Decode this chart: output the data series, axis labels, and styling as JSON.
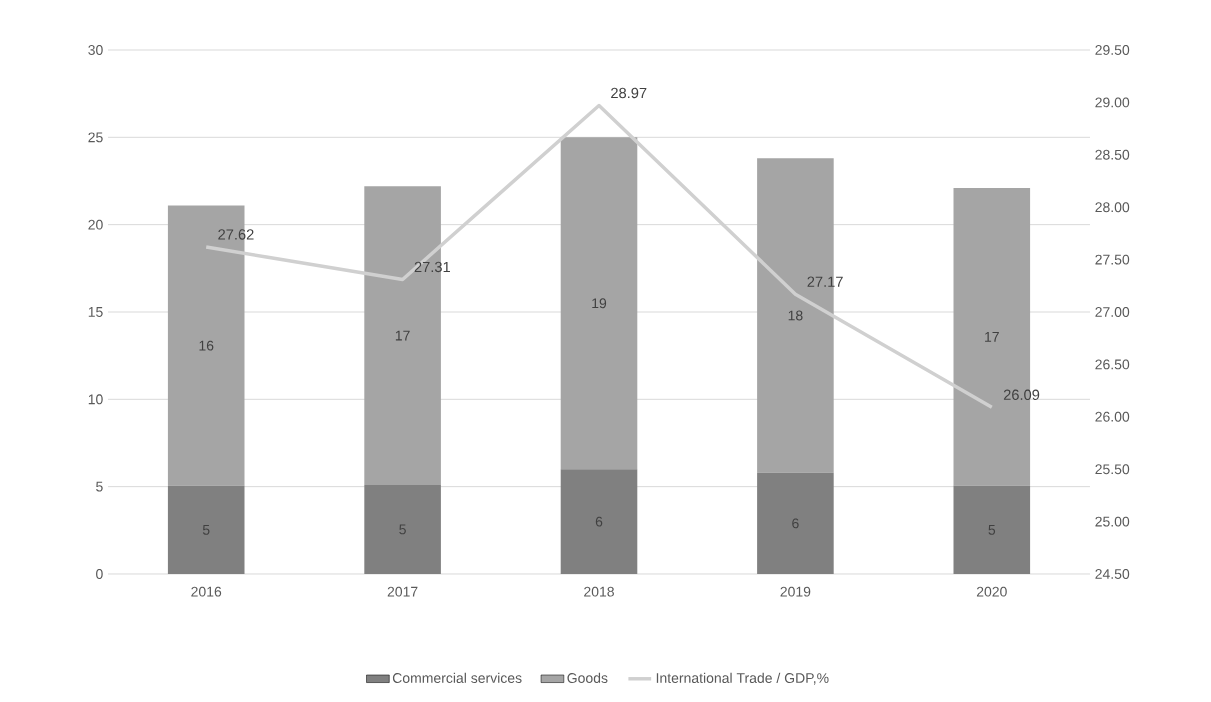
{
  "chart_data": {
    "type": "bar",
    "stacked": true,
    "categories": [
      "2016",
      "2017",
      "2018",
      "2019",
      "2020"
    ],
    "series": [
      {
        "name": "Commercial services",
        "color": "#808080",
        "values": [
          5.05,
          5.1,
          6.0,
          5.8,
          5.05
        ],
        "value_labels": [
          "5",
          "5",
          "6",
          "6",
          "5"
        ]
      },
      {
        "name": "Goods",
        "color": "#a5a5a5",
        "values": [
          16.05,
          17.1,
          19.0,
          18.0,
          17.05
        ],
        "value_labels": [
          "16",
          "17",
          "19",
          "18",
          "17"
        ]
      },
      {
        "name": "International Trade / GDP,%",
        "type": "line",
        "axis": "y2",
        "color": "#d0d0d0",
        "values": [
          27.62,
          27.31,
          28.97,
          27.17,
          26.09
        ],
        "value_labels": [
          "27.62",
          "27.31",
          "28.97",
          "27.17",
          "26.09"
        ]
      }
    ],
    "ylim": [
      0,
      30
    ],
    "yticks": [
      0,
      5,
      10,
      15,
      20,
      25,
      30
    ],
    "y2lim": [
      24.5,
      29.5
    ],
    "y2ticks": [
      {
        "value": 24.5,
        "label": "24.50"
      },
      {
        "value": 25,
        "label": "25.00"
      },
      {
        "value": 25.5,
        "label": "25.50"
      },
      {
        "value": 26,
        "label": "26.00"
      },
      {
        "value": 26.5,
        "label": "26.50"
      },
      {
        "value": 27,
        "label": "27.00"
      },
      {
        "value": 27.5,
        "label": "27.50"
      },
      {
        "value": 28,
        "label": "28.00"
      },
      {
        "value": 28.5,
        "label": "28.50"
      },
      {
        "value": 29,
        "label": "29.00"
      },
      {
        "value": 29.5,
        "label": "29.50"
      }
    ],
    "grid": "y",
    "legend": "bottom"
  }
}
